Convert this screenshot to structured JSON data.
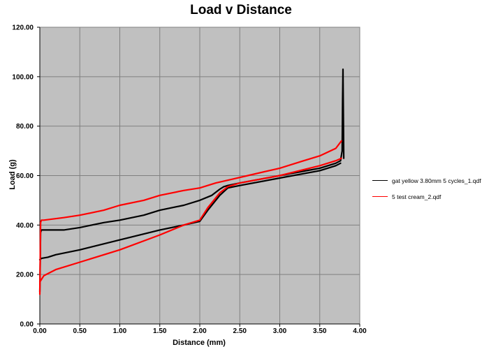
{
  "chart_data": {
    "type": "line",
    "title": "Load v Distance",
    "xlabel": "Distance (mm)",
    "ylabel": "Load (g)",
    "xlim": [
      0,
      4
    ],
    "ylim": [
      0,
      120
    ],
    "x_ticks": [
      "0.00",
      "0.50",
      "1.00",
      "1.50",
      "2.00",
      "2.50",
      "3.00",
      "3.50",
      "4.00"
    ],
    "y_ticks": [
      "0.00",
      "20.00",
      "40.00",
      "60.00",
      "80.00",
      "100.00",
      "120.00"
    ],
    "grid": true,
    "legend_position": "right",
    "plot_background": "#c0c0c0",
    "series": [
      {
        "name": "gat yellow 3.80mm 5 cycles_1.qdf",
        "color": "#000000",
        "segments": [
          {
            "x": [
              0.0,
              0.01,
              0.02,
              0.05,
              0.3,
              0.5,
              0.8,
              1.0,
              1.3,
              1.5,
              1.8,
              2.0,
              2.15,
              2.25,
              2.3,
              2.35,
              2.5,
              3.0,
              3.5,
              3.7,
              3.76
            ],
            "y": [
              13,
              37,
              38,
              38,
              38,
              39,
              41,
              42,
              44,
              46,
              48,
              50,
              52,
              54.5,
              55.5,
              56,
              57,
              60,
              63,
              65,
              66
            ]
          },
          {
            "x": [
              3.76,
              3.7,
              3.5,
              3.0,
              2.5,
              2.35,
              2.25,
              2.1,
              2.0,
              1.8,
              1.5,
              1.0,
              0.5,
              0.2,
              0.1,
              0.02,
              0.0
            ],
            "y": [
              65,
              64,
              62,
              59,
              56,
              55,
              52,
              46,
              41.5,
              40,
              38,
              34,
              30,
              28,
              27,
              26.5,
              26
            ]
          },
          {
            "x": [
              3.76,
              3.78,
              3.785,
              3.79,
              3.8
            ],
            "y": [
              66,
              70,
              90,
              103,
              67
            ]
          }
        ]
      },
      {
        "name": "5 test cream_2.qdf",
        "color": "#ff0000",
        "segments": [
          {
            "x": [
              0.0,
              0.01,
              0.02,
              0.05,
              0.3,
              0.5,
              0.8,
              1.0,
              1.3,
              1.5,
              1.8,
              2.0,
              2.2,
              2.4,
              2.6,
              3.0,
              3.3,
              3.5,
              3.7,
              3.77
            ],
            "y": [
              12,
              41,
              42,
              42,
              43,
              44,
              46,
              48,
              50,
              52,
              54,
              55,
              57,
              58.5,
              60,
              63,
              66,
              68,
              71,
              74
            ]
          },
          {
            "x": [
              3.77,
              3.7,
              3.5,
              3.0,
              2.5,
              2.35,
              2.25,
              2.1,
              2.0,
              1.8,
              1.5,
              1.0,
              0.5,
              0.2,
              0.05,
              0.02,
              0.0
            ],
            "y": [
              67,
              66,
              64,
              60,
              57,
              55.5,
              53,
              47,
              42,
              40,
              36,
              30,
              25,
              22,
              19.5,
              18,
              17
            ]
          }
        ]
      }
    ]
  }
}
